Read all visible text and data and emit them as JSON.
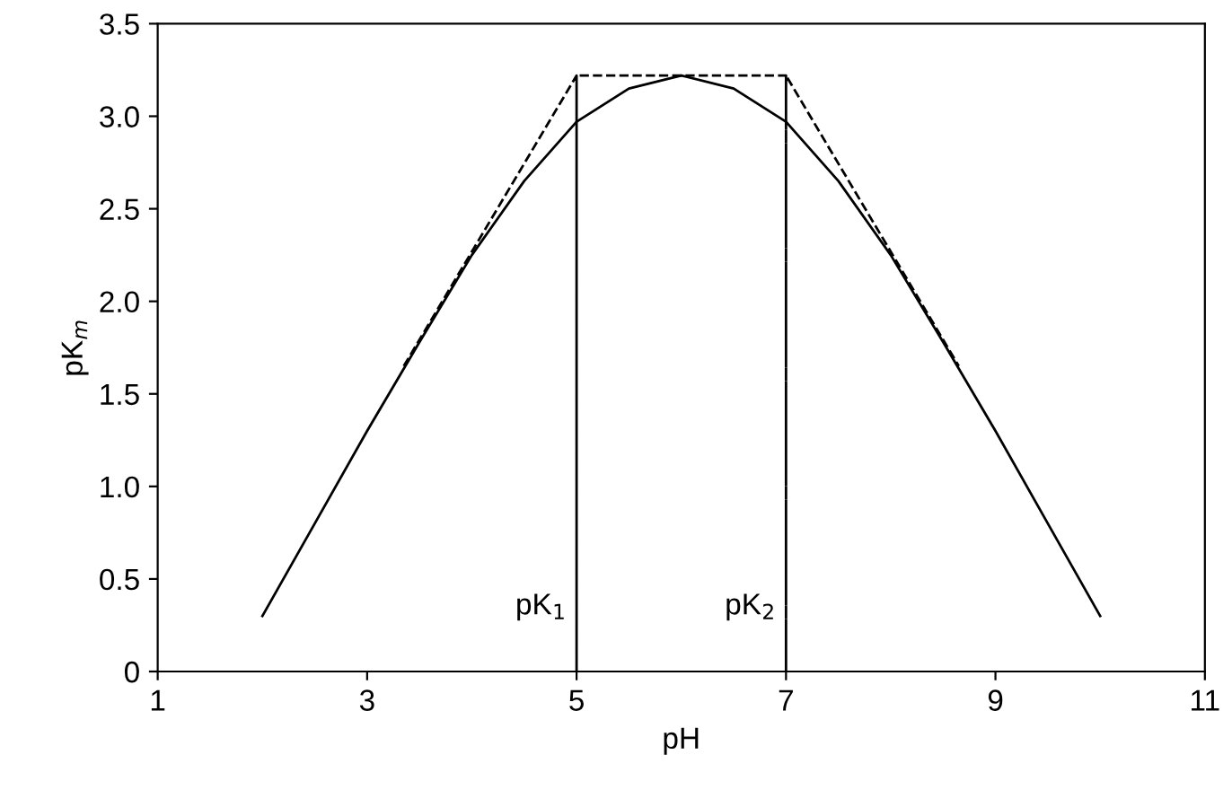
{
  "chart_data": {
    "type": "line",
    "xlabel": "pH",
    "ylabel": "pK$_{m}$",
    "series": [
      {
        "color": "#000000",
        "line_style": "solid",
        "x": [
          2,
          2.5,
          3,
          3.5,
          4,
          4.5,
          5,
          5.5,
          6,
          6.5,
          7,
          7.5,
          8,
          8.5,
          9,
          9.5,
          10
        ],
        "values": [
          0.3,
          0.8,
          1.3,
          1.78,
          2.25,
          2.65,
          2.97,
          3.15,
          3.22,
          3.15,
          2.97,
          2.65,
          2.25,
          1.78,
          1.3,
          0.8,
          0.3
        ]
      },
      {
        "color": "#000000",
        "line_style": "dashed",
        "x": [
          3.35,
          5,
          5,
          5,
          7,
          7,
          7,
          8.65
        ],
        "values": [
          1.65,
          3.22,
          0,
          3.22,
          3.22,
          0,
          3.22,
          1.65
        ]
      }
    ],
    "annotations": [
      {
        "text": "pK$_{1}$",
        "x": 5,
        "y": 0.35
      },
      {
        "text": "pK$_{2}$",
        "x": 7,
        "y": 0.35
      }
    ],
    "xlim": [
      1,
      11
    ],
    "xticks": [
      1,
      3,
      5,
      7,
      9,
      11
    ],
    "ylim": [
      0,
      3.5
    ],
    "yticks": [
      0,
      {
        "value": 0.5,
        "label": "0.5"
      },
      {
        "value": 1,
        "label": "1.0"
      },
      {
        "value": 1.5,
        "label": "1.5"
      },
      {
        "value": 2,
        "label": "2.0"
      },
      {
        "value": 2.5,
        "label": "2.5"
      },
      {
        "value": 3,
        "label": "3.0"
      },
      {
        "value": 3.5,
        "label": "3.5"
      }
    ],
    "grid": false,
    "legend": false
  }
}
